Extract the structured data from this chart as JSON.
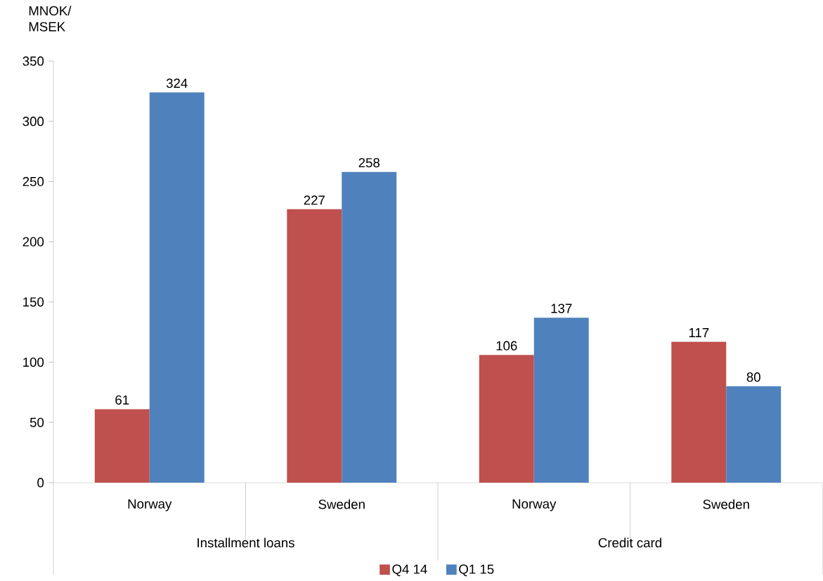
{
  "chart_data": {
    "type": "bar",
    "ylabel": "MNOK/ MSEK",
    "categories": [
      "Norway",
      "Sweden",
      "Norway",
      "Sweden"
    ],
    "annotations": [
      "Installment loans",
      "Credit card"
    ],
    "series": [
      {
        "name": "Q4 14",
        "color": "#c0504d",
        "values": [
          61,
          227,
          106,
          117
        ]
      },
      {
        "name": "Q1 15",
        "color": "#4f81bd",
        "values": [
          324,
          258,
          137,
          80
        ]
      }
    ],
    "ylim": [
      0,
      350
    ],
    "yticks": [
      0,
      50,
      100,
      150,
      200,
      250,
      300,
      350
    ],
    "data_labels": true,
    "grid": false,
    "legend": "bottom"
  }
}
